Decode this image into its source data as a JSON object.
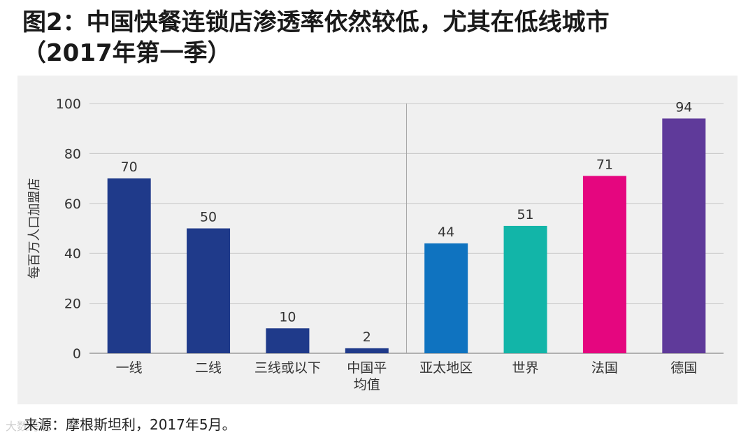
{
  "title": {
    "line1": "图2：中国快餐连锁店渗透率依然较低，尤其在低线城市",
    "line2": "（2017年第一季）"
  },
  "source": "来源：摩根斯坦利，2017年5月。",
  "watermark": "大数跨境",
  "chart_data": {
    "type": "bar",
    "categories": [
      "一线",
      "二线",
      "三线或以下",
      "中国平均值",
      "亚太地区",
      "世界",
      "法国",
      "德国"
    ],
    "category_label_lines": [
      [
        "一线"
      ],
      [
        "二线"
      ],
      [
        "三线或以下"
      ],
      [
        "中国平",
        "均值"
      ],
      [
        "亚太地区"
      ],
      [
        "世界"
      ],
      [
        "法国"
      ],
      [
        "德国"
      ]
    ],
    "values": [
      70,
      50,
      10,
      2,
      44,
      51,
      71,
      94
    ],
    "colors": [
      "#1f3a8a",
      "#1f3a8a",
      "#1f3a8a",
      "#1f3a8a",
      "#0f73c0",
      "#12b5a8",
      "#e5067f",
      "#5f3a9a"
    ],
    "ylabel": "每百万人口加盟店",
    "ylim": [
      0,
      100
    ],
    "yticks": [
      0,
      20,
      40,
      60,
      80,
      100
    ],
    "grid": true,
    "divider_after_index": 3
  }
}
